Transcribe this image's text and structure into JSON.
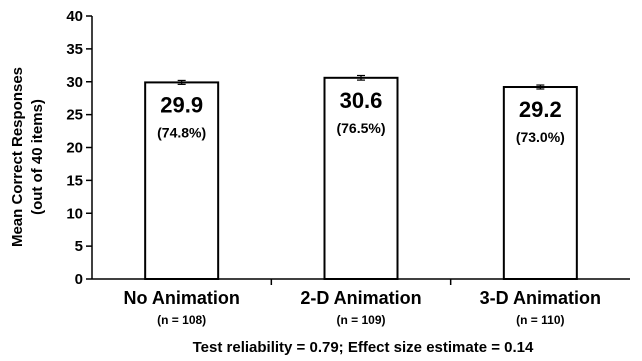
{
  "chart_data": {
    "type": "bar",
    "ylabel_line1": "Mean Correct Responses",
    "ylabel_line2": "(out of 40 items)",
    "ylim": [
      0,
      40
    ],
    "yticks": [
      "0",
      "5",
      "10",
      "15",
      "20",
      "25",
      "30",
      "35",
      "40"
    ],
    "categories": [
      "No Animation",
      "2-D Animation",
      "3-D Animation"
    ],
    "n_labels": [
      "(n = 108)",
      "(n = 109)",
      "(n = 110)"
    ],
    "values": [
      29.9,
      30.6,
      29.2
    ],
    "value_labels": [
      "29.9",
      "30.6",
      "29.2"
    ],
    "percent_labels": [
      "(74.8%)",
      "(76.5%)",
      "(73.0%)"
    ],
    "error": [
      0.3,
      0.35,
      0.3
    ],
    "grid": false,
    "footnote": "Test reliability = 0.79;  Effect size estimate = 0.14",
    "colors": {
      "bar_fill": "#ffffff",
      "bar_stroke": "#000000",
      "axis": "#000000"
    }
  }
}
